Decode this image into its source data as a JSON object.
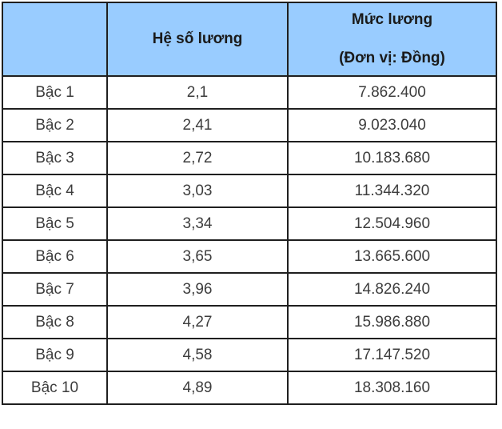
{
  "colors": {
    "header_bg": "#99ccff",
    "border": "#1f1f1f",
    "header_text": "#1a1a1a",
    "body_text": "#3d3d3d"
  },
  "table": {
    "headers": {
      "level": "",
      "coefficient": "Hệ số lương",
      "salary_line1": "Mức lương",
      "salary_line2": "(Đơn vị: Đồng)"
    },
    "rows": [
      {
        "level": "Bậc 1",
        "coefficient": "2,1",
        "salary": "7.862.400"
      },
      {
        "level": "Bậc 2",
        "coefficient": "2,41",
        "salary": "9.023.040"
      },
      {
        "level": "Bậc 3",
        "coefficient": "2,72",
        "salary": "10.183.680"
      },
      {
        "level": "Bậc 4",
        "coefficient": "3,03",
        "salary": "11.344.320"
      },
      {
        "level": "Bậc 5",
        "coefficient": "3,34",
        "salary": "12.504.960"
      },
      {
        "level": "Bậc 6",
        "coefficient": "3,65",
        "salary": "13.665.600"
      },
      {
        "level": "Bậc 7",
        "coefficient": "3,96",
        "salary": "14.826.240"
      },
      {
        "level": "Bậc 8",
        "coefficient": "4,27",
        "salary": "15.986.880"
      },
      {
        "level": "Bậc 9",
        "coefficient": "4,58",
        "salary": "17.147.520"
      },
      {
        "level": "Bậc 10",
        "coefficient": "4,89",
        "salary": "18.308.160"
      }
    ]
  },
  "chart_data": {
    "type": "table",
    "title": "",
    "columns": [
      "",
      "Hệ số lương",
      "Mức lương (Đơn vị: Đồng)"
    ],
    "categories": [
      "Bậc 1",
      "Bậc 2",
      "Bậc 3",
      "Bậc 4",
      "Bậc 5",
      "Bậc 6",
      "Bậc 7",
      "Bậc 8",
      "Bậc 9",
      "Bậc 10"
    ],
    "series": [
      {
        "name": "Hệ số lương",
        "values": [
          2.1,
          2.41,
          2.72,
          3.03,
          3.34,
          3.65,
          3.96,
          4.27,
          4.58,
          4.89
        ]
      },
      {
        "name": "Mức lương (Đồng)",
        "values": [
          7862400,
          9023040,
          10183680,
          11344320,
          12504960,
          13665600,
          14826240,
          15986880,
          17147520,
          18308160
        ]
      }
    ]
  }
}
